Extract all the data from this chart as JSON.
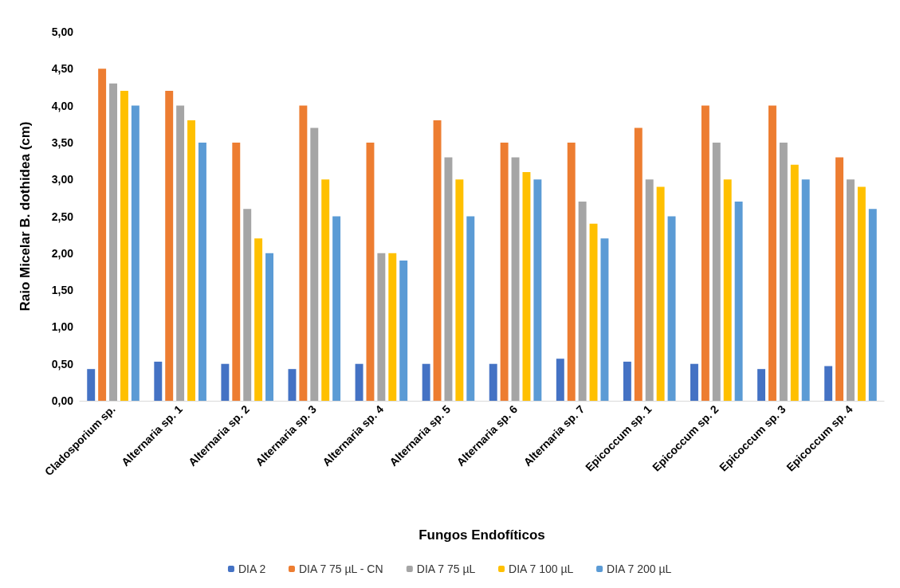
{
  "chart_data": {
    "type": "bar",
    "xlabel": "Fungos Endofíticos",
    "ylabel": "Raio Micelar B. dothidea (cm)",
    "categories": [
      "Cladosporium sp.",
      "Alternaria sp. 1",
      "Alternaria sp. 2",
      "Alternaria sp. 3",
      "Alternaria sp. 4",
      "Alternaria sp. 5",
      "Alternaria sp. 6",
      "Alternaria sp. 7",
      "Epicoccum sp. 1",
      "Epicoccum sp. 2",
      "Epicoccum sp. 3",
      "Epicoccum sp. 4"
    ],
    "series": [
      {
        "name": "DIA 2",
        "color": "#4472c4",
        "values": [
          0.43,
          0.53,
          0.5,
          0.43,
          0.5,
          0.5,
          0.5,
          0.57,
          0.53,
          0.5,
          0.43,
          0.47
        ]
      },
      {
        "name": "DIA 7 75 µL - CN",
        "color": "#ed7d31",
        "values": [
          4.5,
          4.2,
          3.5,
          4.0,
          3.5,
          3.8,
          3.5,
          3.5,
          3.7,
          4.0,
          4.0,
          3.3
        ]
      },
      {
        "name": "DIA 7 75 µL",
        "color": "#a5a5a5",
        "values": [
          4.3,
          4.0,
          2.6,
          3.7,
          2.0,
          3.3,
          3.3,
          2.7,
          3.0,
          3.5,
          3.5,
          3.0
        ]
      },
      {
        "name": "DIA 7 100 µL",
        "color": "#ffc000",
        "values": [
          4.2,
          3.8,
          2.2,
          3.0,
          2.0,
          3.0,
          3.1,
          2.4,
          2.9,
          3.0,
          3.2,
          2.9
        ]
      },
      {
        "name": "DIA 7 200 µL",
        "color": "#5b9bd5",
        "values": [
          4.0,
          3.5,
          2.0,
          2.5,
          1.9,
          2.5,
          3.0,
          2.2,
          2.5,
          2.7,
          3.0,
          2.6
        ]
      }
    ],
    "ylim": [
      0,
      5
    ],
    "yticks": [
      {
        "value": 0,
        "label": "0,00"
      },
      {
        "value": 0.5,
        "label": "0,50"
      },
      {
        "value": 1,
        "label": "1,00"
      },
      {
        "value": 1.5,
        "label": "1,50"
      },
      {
        "value": 2,
        "label": "2,00"
      },
      {
        "value": 2.5,
        "label": "2,50"
      },
      {
        "value": 3,
        "label": "3,00"
      },
      {
        "value": 3.5,
        "label": "3,50"
      },
      {
        "value": 4,
        "label": "4,00"
      },
      {
        "value": 4.5,
        "label": "4,50"
      },
      {
        "value": 5,
        "label": "5,00"
      }
    ],
    "grid": false,
    "legend": "bottom"
  }
}
